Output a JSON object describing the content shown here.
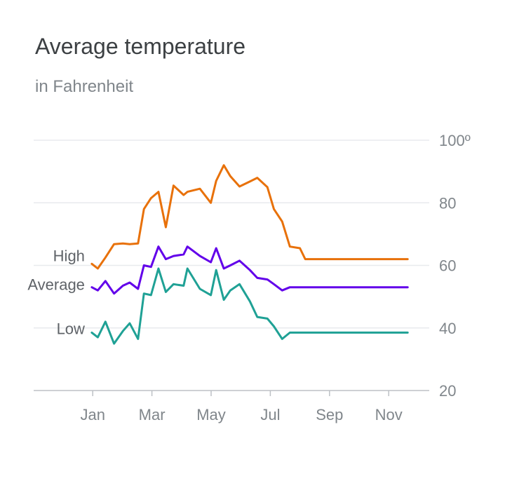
{
  "chart_data": {
    "type": "line",
    "title": "Average temperature",
    "subtitle": "in Fahrenheit",
    "xlabel": "",
    "ylabel": "",
    "x_tick_labels": [
      "Jan",
      "Mar",
      "May",
      "Jul",
      "Sep",
      "Nov"
    ],
    "x_tick_positions": [
      1.0,
      3.0,
      5.0,
      7.0,
      9.0,
      11.0
    ],
    "xlim": [
      0.0,
      12.0
    ],
    "y_ticks": [
      100,
      80,
      60,
      40,
      20
    ],
    "y_tick_labels": [
      "100º",
      "80",
      "60",
      "40",
      "20"
    ],
    "ylim": [
      20,
      100
    ],
    "grid": true,
    "y_axis_side": "right",
    "legend": "inline-left",
    "series_x": [
      0.97,
      1.17,
      1.43,
      1.72,
      2.02,
      2.25,
      2.53,
      2.73,
      2.97,
      3.22,
      3.47,
      3.73,
      4.07,
      4.2,
      4.62,
      4.99,
      5.17,
      5.43,
      5.65,
      5.96,
      6.31,
      6.56,
      6.9,
      7.12,
      7.4,
      7.66,
      8.0,
      8.18,
      8.39,
      8.69,
      9.0,
      9.29,
      9.53,
      9.76,
      10.16,
      10.51,
      10.78,
      11.19,
      11.45,
      11.64
    ],
    "series": [
      {
        "name": "High",
        "color": "#e8710a",
        "values": [
          60.5,
          59.0,
          62.5,
          66.8,
          67.0,
          66.8,
          67.0,
          78.0,
          81.5,
          83.5,
          72.2,
          85.5,
          82.5,
          83.5,
          84.5,
          80.0,
          87.0,
          92.0,
          88.5,
          85.2,
          86.8,
          88.0,
          85.0,
          78.0,
          74.0,
          66.0,
          65.5,
          62.0,
          62.0,
          62.0,
          62.0,
          62.0,
          62.0,
          62.0,
          62.0,
          62.0,
          62.0,
          62.0,
          62.0,
          62.0
        ]
      },
      {
        "name": "Average",
        "color": "#6200ea",
        "values": [
          53.0,
          52.0,
          55.0,
          51.0,
          53.5,
          54.5,
          52.5,
          60.0,
          59.5,
          66.0,
          62.0,
          63.0,
          63.5,
          66.0,
          63.0,
          61.0,
          65.5,
          59.0,
          60.0,
          61.5,
          58.5,
          56.0,
          55.5,
          54.0,
          52.0,
          53.0,
          53.0,
          53.0,
          53.0,
          53.0,
          53.0,
          53.0,
          53.0,
          53.0,
          53.0,
          53.0,
          53.0,
          53.0,
          53.0,
          53.0
        ]
      },
      {
        "name": "Low",
        "color": "#1fa195",
        "values": [
          38.5,
          37.0,
          42.0,
          35.0,
          39.0,
          41.5,
          36.5,
          51.0,
          50.5,
          59.0,
          51.5,
          54.0,
          53.5,
          59.0,
          52.5,
          50.5,
          58.5,
          49.0,
          52.0,
          54.0,
          48.5,
          43.5,
          43.0,
          40.5,
          36.5,
          38.5,
          38.5,
          38.5,
          38.5,
          38.5,
          38.5,
          38.5,
          38.5,
          38.5,
          38.5,
          38.5,
          38.5,
          38.5,
          38.5,
          38.5
        ]
      }
    ]
  }
}
